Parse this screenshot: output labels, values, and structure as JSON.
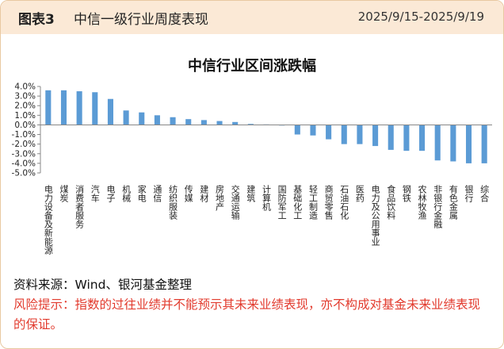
{
  "header": {
    "label": "图表3",
    "title": "中信一级行业周度表现",
    "date_range": "2025/9/15-2025/9/19"
  },
  "colors": {
    "bar": "#5b9bd5",
    "header_bg": "#fbe9d6",
    "border": "#e8c9a2",
    "risk": "#e23b2e"
  },
  "chart_data": {
    "type": "bar",
    "title": "中信行业区间涨跌幅",
    "xlabel": "",
    "ylabel": "",
    "ylim": [
      -5,
      4
    ],
    "yticks": [
      4,
      3,
      2,
      1,
      0,
      -1,
      -2,
      -3,
      -4,
      -5
    ],
    "ytick_labels": [
      "4.0%",
      "3.0%",
      "2.0%",
      "1.0%",
      "0.0%",
      "-1.0%",
      "-2.0%",
      "-3.0%",
      "-4.0%",
      "-5.0%"
    ],
    "grid": false,
    "categories": [
      "电力设备及新能源",
      "煤炭",
      "消费者服务",
      "汽车",
      "电子",
      "机械",
      "家电",
      "通信",
      "纺织服装",
      "传媒",
      "建材",
      "房地产",
      "交通运输",
      "建筑",
      "计算机",
      "国防军工",
      "基础化工",
      "轻工制造",
      "商贸零售",
      "石油石化",
      "医药",
      "电力及公用事业",
      "食品饮料",
      "钢铁",
      "农林牧渔",
      "非银行金融",
      "有色金属",
      "银行",
      "综合"
    ],
    "values": [
      3.6,
      3.6,
      3.5,
      3.4,
      2.7,
      1.5,
      1.3,
      1.0,
      0.8,
      0.6,
      0.5,
      0.4,
      0.3,
      0.1,
      0.05,
      -0.05,
      -1.0,
      -1.1,
      -1.5,
      -2.0,
      -2.0,
      -2.2,
      -2.6,
      -2.7,
      -2.7,
      -3.7,
      -3.8,
      -4.0,
      -4.0
    ]
  },
  "footer": {
    "source": "资料来源：Wind、银河基金整理",
    "risk": "风险提示：指数的过往业绩并不能预示其未来业绩表现，亦不构成对基金未来业绩表现的保证。"
  }
}
